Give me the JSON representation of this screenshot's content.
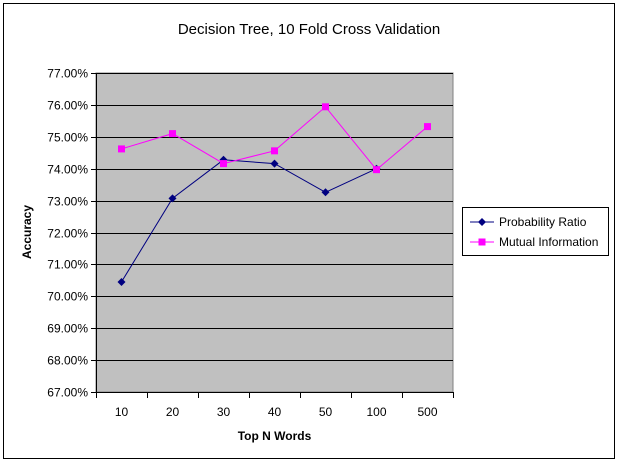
{
  "chart_data": {
    "type": "line",
    "title": "Decision Tree, 10 Fold Cross Validation",
    "xlabel": "Top N Words",
    "ylabel": "Accuracy",
    "categories": [
      "10",
      "20",
      "30",
      "40",
      "50",
      "100",
      "500"
    ],
    "ylim": [
      67.0,
      77.0
    ],
    "y_step": 1.0,
    "y_tick_labels": [
      "67.00%",
      "68.00%",
      "69.00%",
      "70.00%",
      "71.00%",
      "72.00%",
      "73.00%",
      "74.00%",
      "75.00%",
      "76.00%",
      "77.00%"
    ],
    "grid": true,
    "legend_position": "right",
    "plot_background": "#c0c0c0",
    "series": [
      {
        "name": "Probability Ratio",
        "color": "#000080",
        "marker": "diamond",
        "values": [
          70.45,
          73.07,
          74.28,
          74.16,
          73.26,
          74.0,
          null
        ]
      },
      {
        "name": "Mutual Information",
        "color": "#ff00ff",
        "marker": "square",
        "values": [
          74.62,
          75.1,
          74.16,
          74.56,
          75.94,
          73.97,
          75.32
        ]
      }
    ]
  }
}
